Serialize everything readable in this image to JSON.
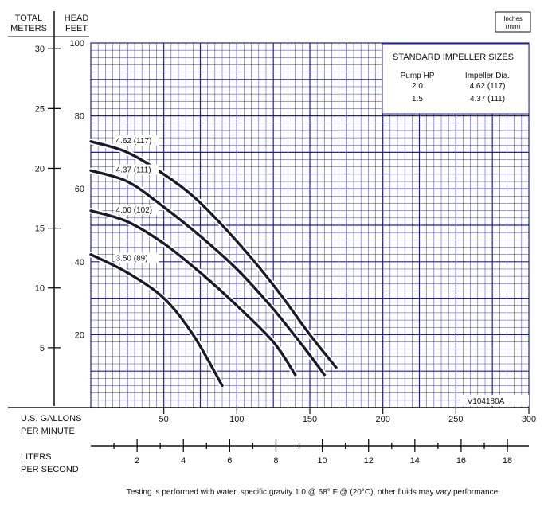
{
  "chart_data": {
    "type": "line",
    "title": "",
    "header": {
      "left_axis_title": [
        "TOTAL",
        "METERS"
      ],
      "right_axis_title": [
        "HEAD",
        "FEET"
      ],
      "units_note": [
        "Inches",
        "(mm)"
      ]
    },
    "y_feet": {
      "ylim": [
        0,
        100
      ],
      "ticks": [
        20,
        40,
        60,
        80,
        100
      ]
    },
    "y_meters": {
      "ticks": [
        5,
        10,
        15,
        20,
        25,
        30
      ]
    },
    "x_gpm": {
      "label": [
        "U.S. GALLONS",
        "PER MINUTE"
      ],
      "xlim": [
        0,
        300
      ],
      "ticks": [
        50,
        100,
        150,
        200,
        250,
        300
      ]
    },
    "x_lps": {
      "label": [
        "LITERS",
        "PER SECOND"
      ],
      "ticks": [
        2,
        4,
        6,
        8,
        10,
        12,
        14,
        16,
        18
      ]
    },
    "series": [
      {
        "name": "4.62 (117)",
        "x": [
          0,
          25,
          50,
          70,
          90,
          110,
          130,
          150,
          168
        ],
        "y": [
          73,
          70,
          64,
          58,
          50,
          41,
          31,
          20,
          11
        ]
      },
      {
        "name": "4.37 (111)",
        "x": [
          0,
          25,
          50,
          75,
          100,
          125,
          145,
          160
        ],
        "y": [
          65,
          62,
          55,
          47,
          38,
          27,
          17,
          9
        ]
      },
      {
        "name": "4.00 (102)",
        "x": [
          0,
          25,
          50,
          75,
          100,
          125,
          140
        ],
        "y": [
          54,
          51,
          45,
          37,
          28,
          18,
          9
        ]
      },
      {
        "name": "3.50 (89)",
        "x": [
          0,
          25,
          50,
          70,
          90
        ],
        "y": [
          42,
          37,
          30,
          20,
          6
        ]
      }
    ],
    "legend_box": {
      "title": "STANDARD IMPELLER SIZES",
      "columns": [
        "Pump HP",
        "Impeller Dia."
      ],
      "rows": [
        [
          "2.0",
          "4.62 (117)"
        ],
        [
          "1.5",
          "4.37 (111)"
        ]
      ]
    },
    "code": "V104180A",
    "footnote": "Testing is performed with water, specific gravity 1.0 @ 68° F @ (20°C), other fluids may vary performance",
    "colors": {
      "grid": "#1f1fa8",
      "curve": "#1a1a2e",
      "text": "#111111"
    }
  }
}
